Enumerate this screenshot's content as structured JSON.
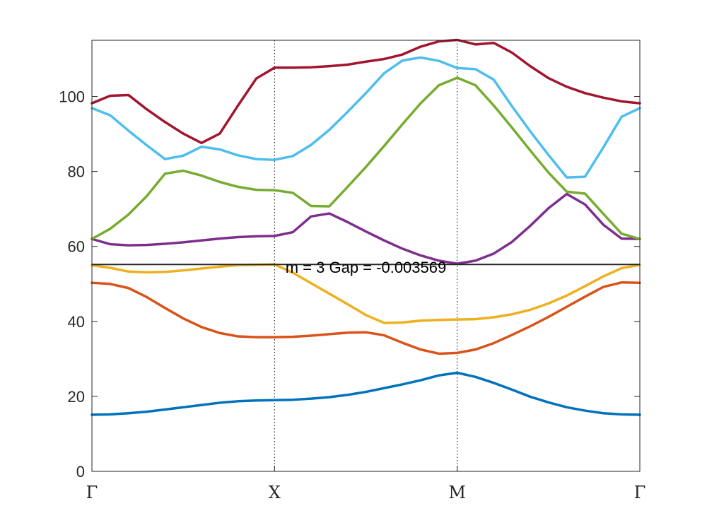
{
  "chart_data": {
    "type": "line",
    "title": "",
    "xlabel": "",
    "ylabel": "",
    "xlim": [
      0,
      3
    ],
    "ylim": [
      0,
      115
    ],
    "x_ticks": [
      {
        "value": 0,
        "label": "Γ"
      },
      {
        "value": 1,
        "label": "X"
      },
      {
        "value": 2,
        "label": "M"
      },
      {
        "value": 3,
        "label": "Γ"
      }
    ],
    "y_ticks": [
      0,
      20,
      40,
      60,
      80,
      100
    ],
    "vertical_guides": [
      1,
      2
    ],
    "grid": false,
    "annotation": {
      "text": "m = 3 Gap = -0.003569",
      "x": 1.5,
      "y": 55.2
    },
    "hline": {
      "y": 55.2,
      "color": "#262626"
    },
    "series": [
      {
        "color": "#0072BD",
        "x": [
          0,
          0.1,
          0.2,
          0.3,
          0.4,
          0.5,
          0.6,
          0.7,
          0.8,
          0.9,
          1.0,
          1.1,
          1.2,
          1.3,
          1.4,
          1.5,
          1.6,
          1.7,
          1.8,
          1.9,
          2.0,
          2.1,
          2.2,
          2.3,
          2.4,
          2.5,
          2.6,
          2.7,
          2.8,
          2.9,
          3.0
        ],
        "y": [
          15.1,
          15.2,
          15.5,
          15.9,
          16.5,
          17.1,
          17.7,
          18.3,
          18.7,
          18.9,
          19.0,
          19.1,
          19.4,
          19.8,
          20.4,
          21.2,
          22.2,
          23.2,
          24.3,
          25.6,
          26.3,
          25.2,
          23.6,
          21.8,
          19.9,
          18.4,
          17.1,
          16.2,
          15.5,
          15.2,
          15.1
        ]
      },
      {
        "color": "#D95319",
        "x": [
          0,
          0.1,
          0.2,
          0.3,
          0.4,
          0.5,
          0.6,
          0.7,
          0.8,
          0.9,
          1.0,
          1.1,
          1.2,
          1.3,
          1.4,
          1.5,
          1.6,
          1.7,
          1.8,
          1.9,
          2.0,
          2.1,
          2.2,
          2.3,
          2.4,
          2.5,
          2.6,
          2.7,
          2.8,
          2.9,
          3.0
        ],
        "y": [
          50.3,
          50.0,
          48.9,
          46.5,
          43.6,
          40.8,
          38.5,
          36.9,
          36.0,
          35.8,
          35.8,
          35.9,
          36.2,
          36.6,
          37.0,
          37.1,
          36.3,
          34.3,
          32.5,
          31.4,
          31.6,
          32.5,
          34.2,
          36.4,
          38.7,
          41.2,
          43.9,
          46.6,
          49.2,
          50.4,
          50.3
        ]
      },
      {
        "color": "#EDB120",
        "x": [
          0,
          0.1,
          0.2,
          0.3,
          0.4,
          0.5,
          0.6,
          0.7,
          0.8,
          0.9,
          1.0,
          1.1,
          1.2,
          1.3,
          1.4,
          1.5,
          1.6,
          1.7,
          1.8,
          1.9,
          2.0,
          2.1,
          2.2,
          2.3,
          2.4,
          2.5,
          2.6,
          2.7,
          2.8,
          2.9,
          3.0
        ],
        "y": [
          55.0,
          54.3,
          53.3,
          53.1,
          53.2,
          53.6,
          54.1,
          54.6,
          55.0,
          55.1,
          55.2,
          53.0,
          50.2,
          47.4,
          44.6,
          41.7,
          39.6,
          39.7,
          40.2,
          40.4,
          40.5,
          40.6,
          41.1,
          41.9,
          43.1,
          44.8,
          46.9,
          49.4,
          52.0,
          54.2,
          55.1
        ]
      },
      {
        "color": "#7E2F8E",
        "x": [
          0,
          0.1,
          0.2,
          0.3,
          0.4,
          0.5,
          0.6,
          0.7,
          0.8,
          0.9,
          1.0,
          1.1,
          1.2,
          1.3,
          1.4,
          1.5,
          1.6,
          1.7,
          1.8,
          1.9,
          2.0,
          2.1,
          2.2,
          2.3,
          2.4,
          2.5,
          2.6,
          2.7,
          2.8,
          2.9,
          3.0
        ],
        "y": [
          62.0,
          60.6,
          60.3,
          60.4,
          60.7,
          61.1,
          61.6,
          62.1,
          62.5,
          62.7,
          62.8,
          63.8,
          68.0,
          68.8,
          66.5,
          64.0,
          61.6,
          59.4,
          57.6,
          56.2,
          55.4,
          56.2,
          58.1,
          61.2,
          65.5,
          70.2,
          74.0,
          71.2,
          65.8,
          62.1,
          62.0
        ]
      },
      {
        "color": "#77AC30",
        "x": [
          0,
          0.1,
          0.2,
          0.3,
          0.4,
          0.5,
          0.6,
          0.7,
          0.8,
          0.9,
          1.0,
          1.1,
          1.2,
          1.3,
          1.4,
          1.5,
          1.6,
          1.7,
          1.8,
          1.9,
          2.0,
          2.1,
          2.2,
          2.3,
          2.4,
          2.5,
          2.6,
          2.7,
          2.8,
          2.9,
          3.0
        ],
        "y": [
          62.0,
          64.7,
          68.5,
          73.4,
          79.4,
          80.2,
          78.9,
          77.2,
          75.9,
          75.1,
          75.0,
          74.3,
          70.8,
          70.7,
          75.9,
          81.2,
          86.8,
          92.6,
          98.2,
          103.0,
          105.0,
          103.0,
          97.6,
          91.7,
          85.6,
          79.7,
          74.6,
          74.1,
          68.7,
          63.4,
          62.0
        ]
      },
      {
        "color": "#4DBEEE",
        "x": [
          0,
          0.1,
          0.2,
          0.3,
          0.4,
          0.5,
          0.6,
          0.7,
          0.8,
          0.9,
          1.0,
          1.1,
          1.2,
          1.3,
          1.4,
          1.5,
          1.6,
          1.7,
          1.8,
          1.9,
          2.0,
          2.1,
          2.2,
          2.3,
          2.4,
          2.5,
          2.6,
          2.7,
          2.8,
          2.9,
          3.0
        ],
        "y": [
          96.9,
          95.0,
          90.9,
          87.0,
          83.3,
          84.2,
          86.6,
          85.9,
          84.3,
          83.3,
          83.1,
          84.1,
          87.1,
          91.1,
          95.9,
          100.9,
          106.2,
          109.6,
          110.4,
          109.5,
          107.6,
          107.3,
          104.5,
          97.4,
          90.7,
          84.4,
          78.4,
          78.6,
          86.4,
          94.6,
          96.9
        ]
      },
      {
        "color": "#A2142F",
        "x": [
          0,
          0.1,
          0.2,
          0.3,
          0.4,
          0.5,
          0.6,
          0.7,
          0.8,
          0.9,
          1.0,
          1.1,
          1.2,
          1.3,
          1.4,
          1.5,
          1.6,
          1.7,
          1.8,
          1.9,
          2.0,
          2.1,
          2.2,
          2.3,
          2.4,
          2.5,
          2.6,
          2.7,
          2.8,
          2.9,
          3.0
        ],
        "y": [
          98.2,
          100.2,
          100.4,
          96.6,
          93.2,
          90.1,
          87.6,
          90.1,
          97.6,
          104.8,
          107.7,
          107.7,
          107.8,
          108.1,
          108.5,
          109.3,
          110.0,
          111.2,
          113.3,
          114.7,
          115.1,
          113.9,
          114.3,
          111.7,
          108.1,
          104.9,
          102.6,
          100.9,
          99.7,
          98.7,
          98.2
        ]
      }
    ]
  }
}
